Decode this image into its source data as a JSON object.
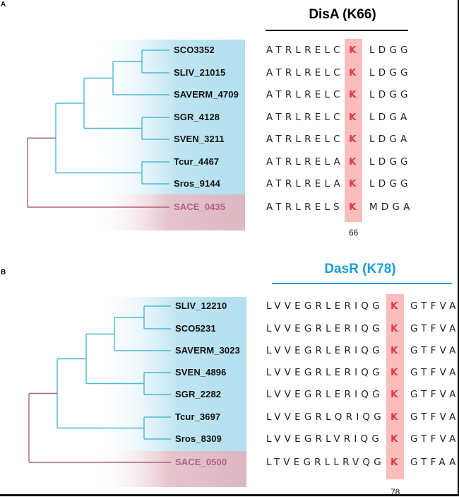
{
  "panels": [
    {
      "letter": "A",
      "title": "DisA (K66)",
      "title_color": "#000000",
      "rule_color": "#000000",
      "position_label": "66",
      "highlight_residue": "K",
      "ingroup_color": "#4bb8d8",
      "outgroup_color": "#b0607a",
      "rows": [
        {
          "id": "SCO3352",
          "pre": "ATRLRELC",
          "k": "K",
          "post": "LDGG",
          "outgroup": false
        },
        {
          "id": "SLIV_21015",
          "pre": "ATRLRELC",
          "k": "K",
          "post": "LDGG",
          "outgroup": false
        },
        {
          "id": "SAVERM_4709",
          "pre": "ATRLRELC",
          "k": "K",
          "post": "LDGG",
          "outgroup": false
        },
        {
          "id": "SGR_4128",
          "pre": "ATRLRELC",
          "k": "K",
          "post": "LDGA",
          "outgroup": false
        },
        {
          "id": "SVEN_3211",
          "pre": "ATRLRELC",
          "k": "K",
          "post": "LDGA",
          "outgroup": false
        },
        {
          "id": "Tcur_4467",
          "pre": "ATRLRELA",
          "k": "K",
          "post": "LDGG",
          "outgroup": false
        },
        {
          "id": "Sros_9144",
          "pre": "ATRLRELA",
          "k": "K",
          "post": "LDGG",
          "outgroup": false
        },
        {
          "id": "SACE_0435",
          "pre": "ATRLRELS",
          "k": "K",
          "post": "MDGA",
          "outgroup": true
        }
      ],
      "tree_newick": "(((((SCO3352,SLIV_21015),SAVERM_4709),(SGR_4128,SVEN_3211)),(Tcur_4467,Sros_9144)),SACE_0435);"
    },
    {
      "letter": "B",
      "title": "DasR (K78)",
      "title_color": "#1a9fd0",
      "rule_color": "#1a9fd0",
      "position_label": "78",
      "highlight_residue": "K",
      "ingroup_color": "#4bb8d8",
      "outgroup_color": "#b0607a",
      "rows": [
        {
          "id": "SLIV_12210",
          "pre": "LVVEGRLERIQG",
          "k": "K",
          "post": "GTFVA",
          "outgroup": false
        },
        {
          "id": "SCO5231",
          "pre": "LVVEGRLERIQG",
          "k": "K",
          "post": "GTFVA",
          "outgroup": false
        },
        {
          "id": "SAVERM_3023",
          "pre": "LVVEGRLERIQG",
          "k": "K",
          "post": "GTFVA",
          "outgroup": false
        },
        {
          "id": "SVEN_4896",
          "pre": "LVVEGRLERIQG",
          "k": "K",
          "post": "GTFVA",
          "outgroup": false
        },
        {
          "id": "SGR_2282",
          "pre": "LVVEGRLERIQG",
          "k": "K",
          "post": "GTFVA",
          "outgroup": false
        },
        {
          "id": "Tcur_3697",
          "pre": "LVVEGRLQRIQG",
          "k": "K",
          "post": "GTFVA",
          "outgroup": false
        },
        {
          "id": "Sros_8309",
          "pre": "LVVEGRLVRIQG",
          "k": "K",
          "post": "GTFVA",
          "outgroup": false
        },
        {
          "id": "SACE_0500",
          "pre": "LTVEGRLLRVQG",
          "k": "K",
          "post": "GTFAA",
          "outgroup": true
        }
      ],
      "tree_newick": "(((((SLIV_12210,SCO5231),SAVERM_3023),(SVEN_4896,SGR_2282)),(Tcur_3697,Sros_8309)),SACE_0500);"
    }
  ]
}
